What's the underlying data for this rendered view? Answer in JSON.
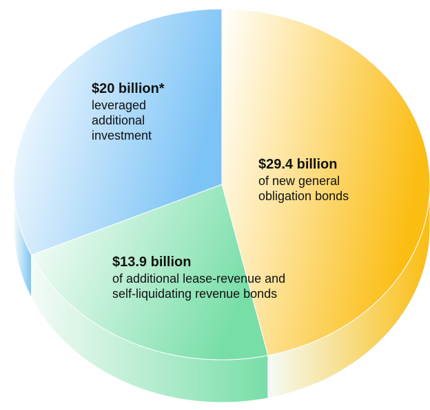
{
  "chart_data": {
    "type": "pie",
    "values": [
      29.4,
      13.9,
      20
    ],
    "value_labels": [
      "$29.4 billion",
      "$13.9 billion",
      "$20 billion*"
    ],
    "categories": [
      "of new general obligation bonds",
      "of additional lease-revenue and self-liquidating revenue bonds",
      "leveraged additional investment"
    ],
    "colors": [
      "#fbbd12",
      "#78dea8",
      "#7cc3f6"
    ]
  }
}
